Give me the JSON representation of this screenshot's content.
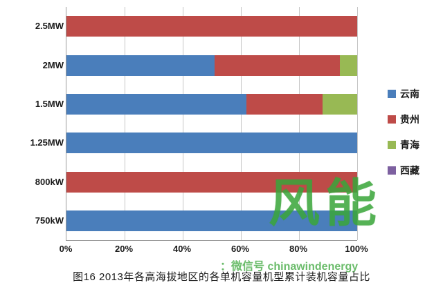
{
  "chart_data": {
    "type": "bar",
    "orientation": "horizontal-stacked-100",
    "title": "",
    "xlabel": "",
    "ylabel": "",
    "xlim": [
      0,
      100
    ],
    "grid": true,
    "legend_position": "right",
    "categories": [
      "2.5MW",
      "2MW",
      "1.5MW",
      "1.25MW",
      "800kW",
      "750kW"
    ],
    "x_ticks": [
      "0%",
      "20%",
      "40%",
      "60%",
      "80%",
      "100%"
    ],
    "series": [
      {
        "name": "云南",
        "color": "#4a7ebb",
        "values": [
          0,
          51,
          62,
          100,
          0,
          100
        ]
      },
      {
        "name": "贵州",
        "color": "#be4b48",
        "values": [
          100,
          43,
          26,
          0,
          100,
          0
        ]
      },
      {
        "name": "青海",
        "color": "#98b954",
        "values": [
          0,
          6,
          12,
          0,
          0,
          0
        ]
      },
      {
        "name": "西藏",
        "color": "#7d60a0",
        "values": [
          0,
          0,
          0,
          0,
          0,
          0
        ]
      }
    ]
  },
  "caption": "图16 2013年各高海拔地区的各单机容量机型累计装机容量占比",
  "watermark": {
    "brand": "风能",
    "line": "：微信号 chinawindenergy",
    "color": "#3aa53a"
  }
}
